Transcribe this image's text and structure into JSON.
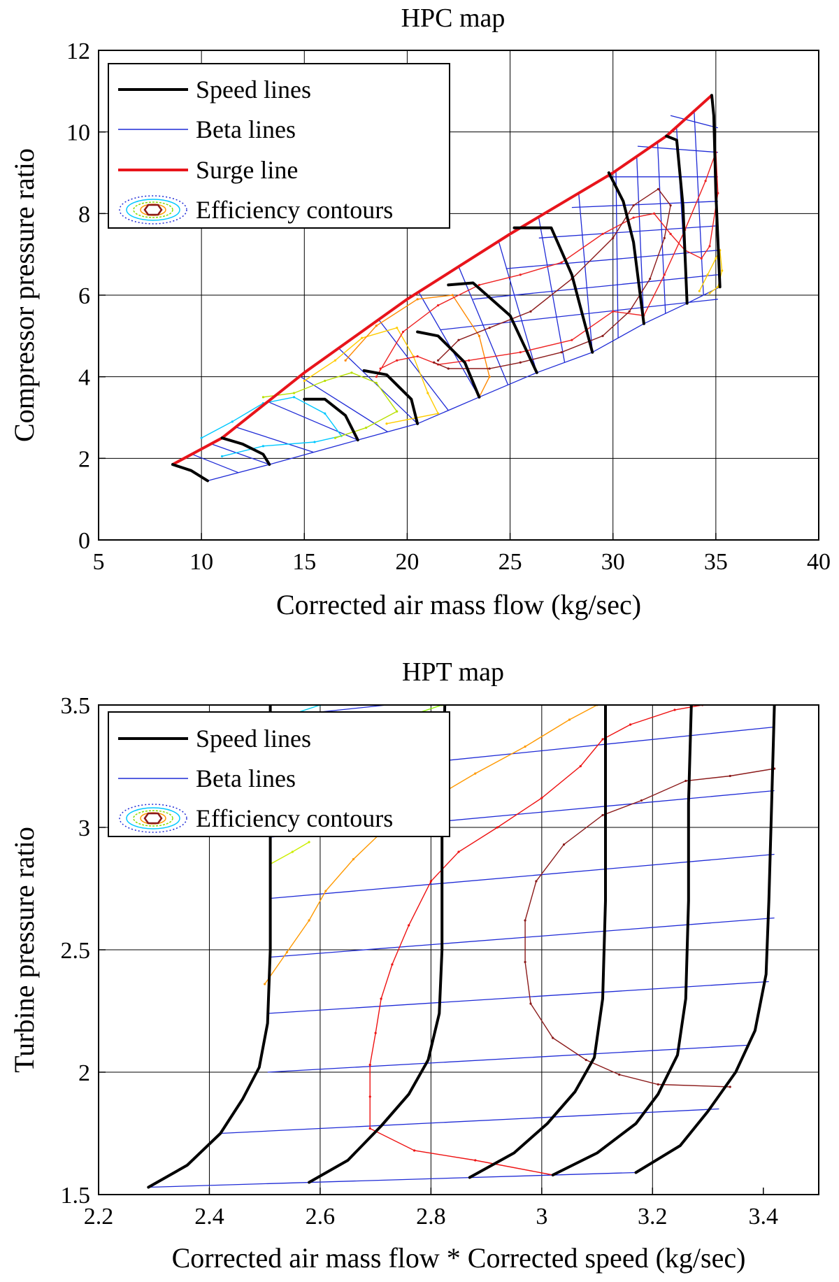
{
  "chart_data": [
    {
      "type": "line",
      "title": "HPC map",
      "xlabel": "Corrected air mass flow (kg/sec)",
      "ylabel": "Compressor pressure ratio",
      "xlim": [
        5,
        40
      ],
      "ylim": [
        0,
        12
      ],
      "xticks": [
        "5",
        "10",
        "15",
        "20",
        "25",
        "30",
        "35",
        "40"
      ],
      "yticks": [
        "0",
        "2",
        "4",
        "6",
        "8",
        "10",
        "12"
      ],
      "grid": true,
      "legend_position": "top-left",
      "legend": [
        {
          "label": "Speed lines",
          "kind": "speed"
        },
        {
          "label": "Beta lines",
          "kind": "beta"
        },
        {
          "label": "Surge line",
          "kind": "surge"
        },
        {
          "label": "Efficiency contours",
          "kind": "efficiency"
        }
      ],
      "colors": {
        "speed": "#000000",
        "beta": "#1f2bd6",
        "surge": "#e8141b"
      },
      "speed_lines": [
        [
          [
            8.6,
            1.85
          ],
          [
            9.5,
            1.7
          ],
          [
            10.3,
            1.45
          ]
        ],
        [
          [
            11,
            2.5
          ],
          [
            12,
            2.35
          ],
          [
            13,
            2.1
          ],
          [
            13.3,
            1.85
          ]
        ],
        [
          [
            15,
            3.45
          ],
          [
            16,
            3.45
          ],
          [
            17,
            3.05
          ],
          [
            17.6,
            2.45
          ]
        ],
        [
          [
            17.9,
            4.15
          ],
          [
            19,
            4.05
          ],
          [
            20.2,
            3.45
          ],
          [
            20.5,
            2.85
          ]
        ],
        [
          [
            20.5,
            5.1
          ],
          [
            21.5,
            5.0
          ],
          [
            22.8,
            4.35
          ],
          [
            23.5,
            3.5
          ]
        ],
        [
          [
            22,
            6.25
          ],
          [
            23.2,
            6.3
          ],
          [
            25,
            5.5
          ],
          [
            26.3,
            4.1
          ]
        ],
        [
          [
            25.2,
            7.65
          ],
          [
            27,
            7.65
          ],
          [
            28,
            6.5
          ],
          [
            29,
            4.6
          ]
        ],
        [
          [
            29.8,
            9.0
          ],
          [
            30.5,
            8.3
          ],
          [
            31,
            7.3
          ],
          [
            31.5,
            5.3
          ]
        ],
        [
          [
            32.6,
            9.9
          ],
          [
            33.1,
            9.8
          ],
          [
            33.4,
            8.2
          ],
          [
            33.6,
            5.8
          ]
        ],
        [
          [
            34.8,
            10.9
          ],
          [
            34.9,
            10.4
          ],
          [
            35,
            8.5
          ],
          [
            35.2,
            6.2
          ]
        ]
      ],
      "surge_line": [
        [
          8.6,
          1.85
        ],
        [
          11,
          2.5
        ],
        [
          15,
          4.1
        ],
        [
          20,
          5.9
        ],
        [
          25,
          7.5
        ],
        [
          30,
          9.0
        ],
        [
          32.6,
          9.9
        ],
        [
          34.8,
          10.9
        ]
      ],
      "choke_line": [
        [
          10.3,
          1.45
        ],
        [
          13.3,
          1.85
        ],
        [
          17.6,
          2.45
        ],
        [
          20.5,
          2.85
        ],
        [
          23.5,
          3.5
        ],
        [
          26.3,
          4.1
        ],
        [
          29,
          4.6
        ],
        [
          31.5,
          5.3
        ],
        [
          33.6,
          5.8
        ],
        [
          35.2,
          6.2
        ]
      ],
      "efficiency_contours": [
        {
          "color": "#00c8ff",
          "points": [
            [
              10,
              2.5
            ],
            [
              11.5,
              2.9
            ],
            [
              13,
              3.35
            ],
            [
              14.5,
              3.5
            ],
            [
              16,
              3.1
            ],
            [
              16.8,
              2.55
            ],
            [
              15.5,
              2.4
            ],
            [
              13,
              2.3
            ],
            [
              11,
              2.05
            ]
          ]
        },
        {
          "color": "#b8e000",
          "points": [
            [
              13,
              3.5
            ],
            [
              14.5,
              3.6
            ],
            [
              16,
              3.9
            ],
            [
              17.3,
              4.1
            ],
            [
              18.5,
              3.85
            ],
            [
              19.5,
              3.15
            ],
            [
              18,
              2.75
            ],
            [
              16.5,
              2.5
            ]
          ]
        },
        {
          "color": "#ffcc00",
          "points": [
            [
              15,
              3.9
            ],
            [
              16.5,
              4.4
            ],
            [
              17.8,
              4.95
            ],
            [
              19.5,
              5.2
            ],
            [
              20.3,
              4.5
            ],
            [
              21,
              3.6
            ],
            [
              21.5,
              3.1
            ],
            [
              19,
              2.85
            ]
          ]
        },
        {
          "color": "#ff8800",
          "points": [
            [
              17,
              4.4
            ],
            [
              18.5,
              5.25
            ],
            [
              20.5,
              5.9
            ],
            [
              22.2,
              6.0
            ],
            [
              23.5,
              5.0
            ],
            [
              24,
              4.0
            ],
            [
              23.5,
              3.5
            ]
          ]
        },
        {
          "color": "#ee2222",
          "points": [
            [
              18.5,
              4.0
            ],
            [
              19.8,
              5.1
            ],
            [
              21.5,
              5.75
            ],
            [
              23.5,
              6.25
            ],
            [
              25.5,
              6.5
            ],
            [
              27.5,
              6.8
            ],
            [
              29.5,
              7.5
            ],
            [
              31,
              7.9
            ],
            [
              32,
              8.0
            ],
            [
              32.8,
              7.5
            ],
            [
              33.5,
              7.1
            ],
            [
              34.3,
              6.9
            ],
            [
              34.7,
              7.2
            ],
            [
              35.1,
              8.5
            ],
            [
              35,
              9.5
            ],
            [
              34.5,
              8.8
            ],
            [
              33.5,
              7.6
            ],
            [
              32.5,
              6.5
            ],
            [
              31.5,
              5.5
            ],
            [
              30,
              5.6
            ],
            [
              28,
              4.9
            ],
            [
              25.5,
              4.6
            ],
            [
              23,
              4.4
            ],
            [
              21.5,
              4.3
            ],
            [
              20.5,
              4.5
            ],
            [
              19.5,
              4.4
            ],
            [
              18.7,
              4.2
            ]
          ]
        },
        {
          "color": "#8b1a1a",
          "points": [
            [
              21.5,
              4.4
            ],
            [
              22.5,
              4.9
            ],
            [
              24,
              5.2
            ],
            [
              26,
              5.6
            ],
            [
              28,
              6.4
            ],
            [
              30,
              7.4
            ],
            [
              31,
              8.2
            ],
            [
              32.2,
              8.6
            ],
            [
              32.8,
              8.2
            ],
            [
              32.5,
              7.4
            ],
            [
              31.8,
              6.4
            ],
            [
              30.8,
              5.6
            ],
            [
              29.5,
              5.0
            ],
            [
              27.5,
              4.6
            ],
            [
              25.5,
              4.35
            ],
            [
              24,
              4.2
            ],
            [
              22,
              4.2
            ],
            [
              21.3,
              4.35
            ]
          ]
        },
        {
          "color": "#ffcc00",
          "points": [
            [
              34.2,
              6.1
            ],
            [
              34.6,
              6.5
            ],
            [
              35,
              6.9
            ],
            [
              35.2,
              7.1
            ],
            [
              35.3,
              6.6
            ],
            [
              35.1,
              6.2
            ],
            [
              34.7,
              6.05
            ]
          ]
        }
      ]
    },
    {
      "type": "line",
      "title": "HPT map",
      "xlabel": "Corrected air mass flow * Corrected speed (kg/sec)",
      "ylabel": "Turbine pressure ratio",
      "xlim": [
        2.2,
        3.5
      ],
      "ylim": [
        1.5,
        3.5
      ],
      "xticks": [
        "2.2",
        "2.4",
        "2.6",
        "2.8",
        "3",
        "3.2",
        "3.4"
      ],
      "yticks": [
        "1.5",
        "2",
        "2.5",
        "3",
        "3.5"
      ],
      "grid": true,
      "legend_position": "top-left",
      "legend": [
        {
          "label": "Speed lines",
          "kind": "speed"
        },
        {
          "label": "Beta lines",
          "kind": "beta"
        },
        {
          "label": "Efficiency contours",
          "kind": "efficiency"
        }
      ],
      "colors": {
        "speed": "#000000",
        "beta": "#1f2bd6"
      },
      "speed_lines": [
        [
          [
            2.29,
            1.53
          ],
          [
            2.36,
            1.62
          ],
          [
            2.42,
            1.75
          ],
          [
            2.46,
            1.89
          ],
          [
            2.49,
            2.02
          ],
          [
            2.505,
            2.2
          ],
          [
            2.51,
            2.5
          ],
          [
            2.51,
            3.0
          ],
          [
            2.51,
            3.5
          ]
        ],
        [
          [
            2.58,
            1.55
          ],
          [
            2.65,
            1.64
          ],
          [
            2.71,
            1.78
          ],
          [
            2.76,
            1.91
          ],
          [
            2.795,
            2.05
          ],
          [
            2.815,
            2.24
          ],
          [
            2.82,
            2.5
          ],
          [
            2.82,
            3.0
          ],
          [
            2.825,
            3.5
          ]
        ],
        [
          [
            2.87,
            1.57
          ],
          [
            2.95,
            1.67
          ],
          [
            3.01,
            1.79
          ],
          [
            3.06,
            1.92
          ],
          [
            3.095,
            2.06
          ],
          [
            3.11,
            2.3
          ],
          [
            3.115,
            2.7
          ],
          [
            3.115,
            3.1
          ],
          [
            3.115,
            3.5
          ]
        ],
        [
          [
            3.02,
            1.58
          ],
          [
            3.1,
            1.67
          ],
          [
            3.17,
            1.79
          ],
          [
            3.21,
            1.91
          ],
          [
            3.245,
            2.07
          ],
          [
            3.26,
            2.3
          ],
          [
            3.265,
            2.7
          ],
          [
            3.265,
            3.1
          ],
          [
            3.27,
            3.5
          ]
        ],
        [
          [
            3.17,
            1.59
          ],
          [
            3.25,
            1.7
          ],
          [
            3.3,
            1.84
          ],
          [
            3.35,
            2.0
          ],
          [
            3.385,
            2.17
          ],
          [
            3.405,
            2.4
          ],
          [
            3.41,
            2.7
          ],
          [
            3.415,
            3.1
          ],
          [
            3.42,
            3.5
          ]
        ]
      ],
      "beta_lines": [
        [
          [
            2.29,
            1.53
          ],
          [
            3.17,
            1.59
          ]
        ],
        [
          [
            2.42,
            1.75
          ],
          [
            3.32,
            1.85
          ]
        ],
        [
          [
            2.505,
            2.0
          ],
          [
            3.37,
            2.11
          ]
        ],
        [
          [
            2.505,
            2.24
          ],
          [
            3.41,
            2.37
          ]
        ],
        [
          [
            2.51,
            2.47
          ],
          [
            3.42,
            2.63
          ]
        ],
        [
          [
            2.51,
            2.71
          ],
          [
            3.42,
            2.89
          ]
        ],
        [
          [
            2.51,
            2.96
          ],
          [
            3.42,
            3.15
          ]
        ],
        [
          [
            2.51,
            3.2
          ],
          [
            3.42,
            3.41
          ]
        ],
        [
          [
            2.51,
            3.45
          ],
          [
            2.72,
            3.5
          ]
        ]
      ],
      "efficiency_contours": [
        {
          "color": "#ff9900",
          "points": [
            [
              2.5,
              2.36
            ],
            [
              2.54,
              2.49
            ],
            [
              2.58,
              2.62
            ],
            [
              2.61,
              2.74
            ],
            [
              2.66,
              2.87
            ],
            [
              2.72,
              3.0
            ],
            [
              2.79,
              3.1
            ],
            [
              2.88,
              3.22
            ],
            [
              2.97,
              3.33
            ],
            [
              3.05,
              3.44
            ],
            [
              3.1,
              3.5
            ]
          ]
        },
        {
          "color": "#ee1111",
          "points": [
            [
              3.02,
              1.58
            ],
            [
              2.88,
              1.64
            ],
            [
              2.77,
              1.68
            ],
            [
              2.69,
              1.77
            ],
            [
              2.69,
              1.9
            ],
            [
              2.69,
              2.03
            ],
            [
              2.7,
              2.16
            ],
            [
              2.71,
              2.3
            ],
            [
              2.73,
              2.44
            ],
            [
              2.76,
              2.6
            ],
            [
              2.8,
              2.78
            ],
            [
              2.85,
              2.9
            ],
            [
              2.92,
              3.0
            ],
            [
              3.0,
              3.12
            ],
            [
              3.07,
              3.25
            ],
            [
              3.11,
              3.36
            ],
            [
              3.16,
              3.42
            ],
            [
              3.24,
              3.48
            ],
            [
              3.29,
              3.5
            ]
          ]
        },
        {
          "color": "#8b1a1a",
          "points": [
            [
              3.34,
              1.94
            ],
            [
              3.21,
              1.95
            ],
            [
              3.14,
              1.99
            ],
            [
              3.08,
              2.05
            ],
            [
              3.02,
              2.14
            ],
            [
              2.98,
              2.28
            ],
            [
              2.97,
              2.45
            ],
            [
              2.97,
              2.62
            ],
            [
              2.99,
              2.78
            ],
            [
              3.04,
              2.93
            ],
            [
              3.11,
              3.05
            ],
            [
              3.18,
              3.11
            ],
            [
              3.26,
              3.19
            ],
            [
              3.34,
              3.21
            ],
            [
              3.42,
              3.24
            ]
          ]
        },
        {
          "color": "#88ee00",
          "points": [
            [
              2.69,
              3.41
            ],
            [
              2.73,
              3.44
            ],
            [
              2.78,
              3.47
            ],
            [
              2.82,
              3.5
            ]
          ]
        },
        {
          "color": "#ccee00",
          "points": [
            [
              2.51,
              2.85
            ],
            [
              2.55,
              2.9
            ],
            [
              2.58,
              2.94
            ]
          ]
        },
        {
          "color": "#00ccee",
          "points": [
            [
              2.56,
              3.47
            ],
            [
              2.6,
              3.5
            ]
          ]
        }
      ]
    }
  ]
}
